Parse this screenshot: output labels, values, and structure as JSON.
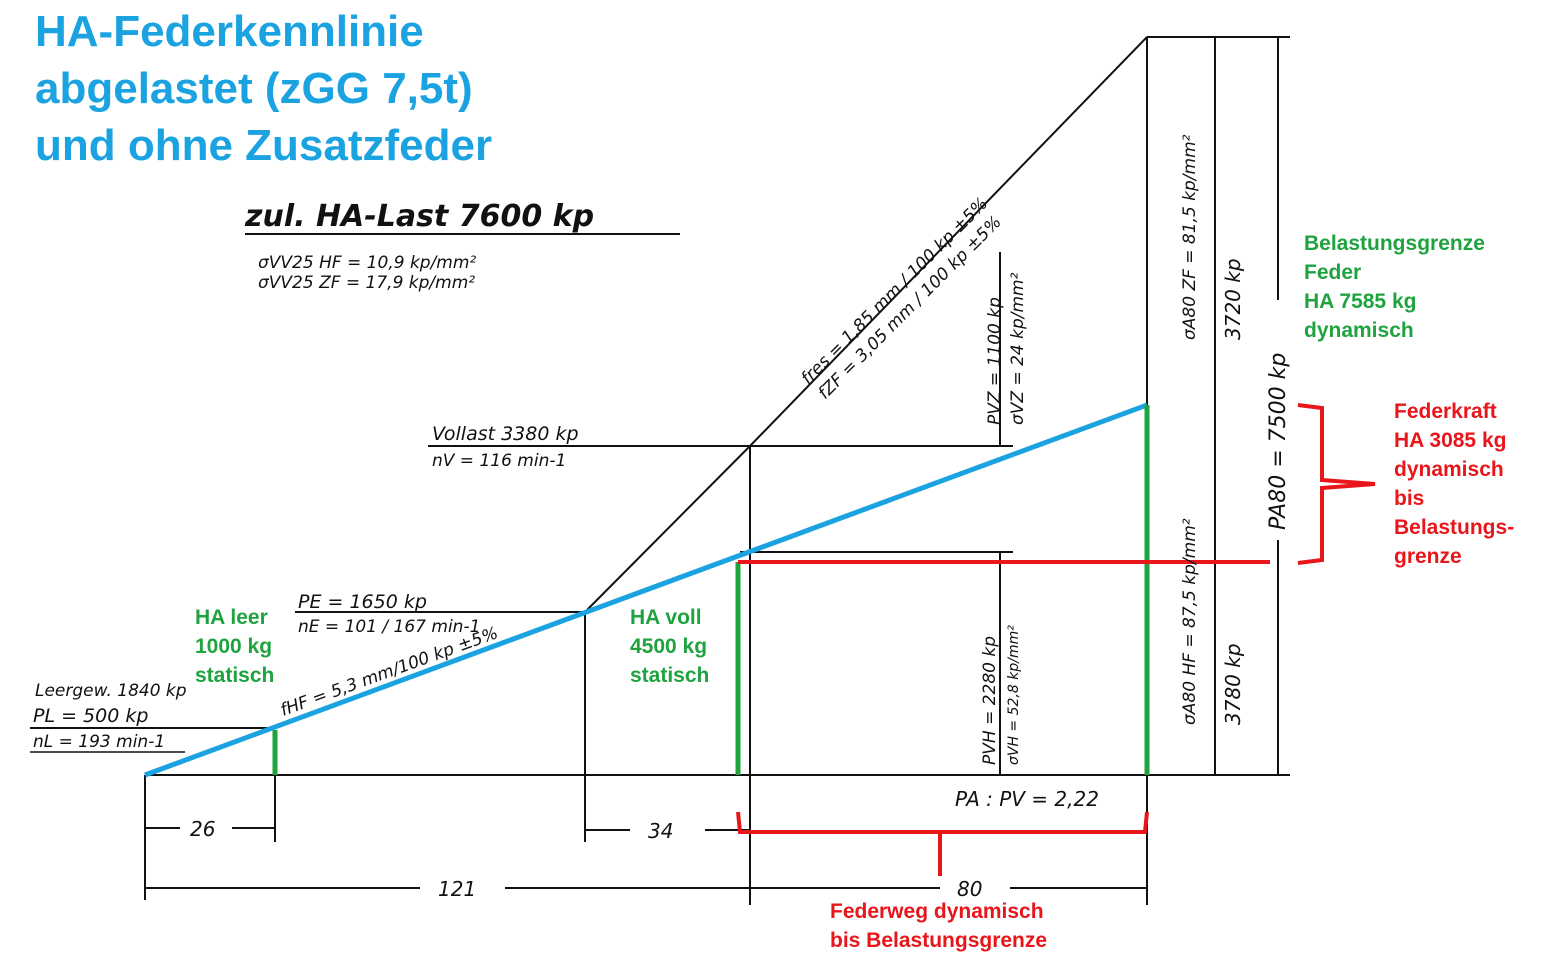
{
  "title": [
    "HA-Federkennlinie",
    "abgelastet (zGG 7,5t)",
    "und ohne Zusatzfeder"
  ],
  "heading": "zul. HA-Last 7600 kp",
  "stresses": [
    "σVV25 HF = 10,9 kp/mm²",
    "σVV25 ZF = 17,9 kp/mm²"
  ],
  "vollast": [
    "Vollast 3380 kp",
    "nV = 116 min-1"
  ],
  "pe": [
    "PE = 1650 kp",
    "nE = 101 / 167 min-1"
  ],
  "leer": [
    "Leergew. 1840 kp",
    "PL = 500 kp",
    "nL = 193 min-1"
  ],
  "slopes": [
    "fres = 1,85 mm / 100 kp ±5%",
    "fZF = 3,05 mm / 100 kp ±5%",
    "fHF = 5,3 mm/100 kp ±5%"
  ],
  "pvz": [
    "PVZ = 1100 kp",
    "σVZ = 24 kp/mm²"
  ],
  "pvh": [
    "PVH = 2280 kp",
    "σVH = 52,8 kp/mm²"
  ],
  "a80zf": [
    "σA80 ZF = 81,5 kp/mm²",
    "3720 kp"
  ],
  "a80hf": [
    "σA80 HF = 87,5 kp/mm²",
    "3780 kp"
  ],
  "pa80": "PA80 = 7500 kp",
  "ratio": "PA : PV = 2,22",
  "dimensions": [
    "26",
    "34",
    "121",
    "80"
  ],
  "green": {
    "leer": [
      "HA leer",
      "1000 kg",
      "statisch"
    ],
    "voll": [
      "HA voll",
      "4500 kg",
      "statisch"
    ],
    "grenze": [
      "Belastungsgrenze",
      "Feder",
      "HA 7585 kg",
      "dynamisch"
    ]
  },
  "red": {
    "kraft": [
      "Federkraft",
      "HA 3085 kg",
      "dynamisch",
      "bis",
      "Belastungs-",
      "grenze"
    ],
    "weg": [
      "Federweg dynamisch",
      "bis Belastungsgrenze"
    ]
  }
}
